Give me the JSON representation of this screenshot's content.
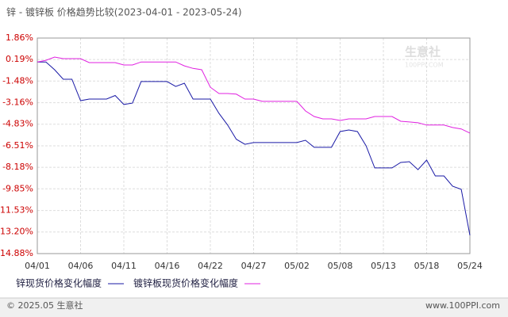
{
  "chart_data": {
    "type": "line",
    "title": "锌 - 镀锌板 价格趋势比较(2023-04-01 - 2023-05-24)",
    "categories": [
      "04/01",
      null,
      null,
      null,
      null,
      "04/06",
      null,
      null,
      null,
      null,
      "04/11",
      null,
      null,
      null,
      null,
      "04/16",
      null,
      null,
      null,
      null,
      "04/22",
      null,
      null,
      null,
      null,
      "04/27",
      null,
      null,
      null,
      null,
      "05/02",
      null,
      null,
      null,
      null,
      "05/08",
      null,
      null,
      null,
      null,
      "05/13",
      null,
      null,
      null,
      null,
      "05/18",
      null,
      null,
      null,
      null,
      "05/24"
    ],
    "series": [
      {
        "name": "锌现货价格变化幅度",
        "color": "#1a1aa6",
        "values": [
          0,
          0,
          -0.6,
          -1.34,
          -1.34,
          -3.0,
          -2.88,
          -2.88,
          -2.88,
          -2.6,
          -3.3,
          -3.19,
          -1.52,
          -1.52,
          -1.52,
          -1.52,
          -1.9,
          -1.65,
          -2.88,
          -2.88,
          -2.88,
          -3.99,
          -4.9,
          -6.0,
          -6.39,
          -6.26,
          -6.26,
          -6.26,
          -6.26,
          -6.26,
          -6.26,
          -6.08,
          -6.63,
          -6.63,
          -6.63,
          -5.4,
          -5.28,
          -5.4,
          -6.51,
          -8.23,
          -8.23,
          -8.23,
          -7.8,
          -7.74,
          -8.36,
          -7.62,
          -8.85,
          -8.85,
          -9.65,
          -9.89,
          -13.46
        ]
      },
      {
        "name": "镀锌板现货价格变化幅度",
        "color": "#e020e0",
        "values": [
          0,
          0.13,
          0.38,
          0.26,
          0.26,
          0.26,
          -0.05,
          -0.05,
          -0.05,
          -0.05,
          -0.23,
          -0.23,
          0,
          0,
          0,
          0,
          0,
          -0.3,
          -0.5,
          -0.6,
          -1.96,
          -2.45,
          -2.45,
          -2.5,
          -2.88,
          -2.88,
          -3.06,
          -3.06,
          -3.06,
          -3.06,
          -3.06,
          -3.8,
          -4.23,
          -4.42,
          -4.42,
          -4.54,
          -4.42,
          -4.42,
          -4.42,
          -4.23,
          -4.23,
          -4.23,
          -4.6,
          -4.66,
          -4.72,
          -4.9,
          -4.9,
          -4.9,
          -5.09,
          -5.2,
          -5.52
        ]
      }
    ],
    "ylim": [
      -14.88,
      1.86
    ],
    "yticks": [
      {
        "value": 1.86,
        "label": "1.86%"
      },
      {
        "value": 0.19,
        "label": "0.19%"
      },
      {
        "value": -1.48,
        "label": "-1.48%"
      },
      {
        "value": -3.16,
        "label": "-3.16%"
      },
      {
        "value": -4.83,
        "label": "-4.83%"
      },
      {
        "value": -6.51,
        "label": "-6.51%"
      },
      {
        "value": -8.18,
        "label": "-8.18%"
      },
      {
        "value": -9.85,
        "label": "-9.85%"
      },
      {
        "value": -11.53,
        "label": "-11.53%"
      },
      {
        "value": -13.2,
        "label": "-13.20%"
      },
      {
        "value": -14.88,
        "label": "-14.88%"
      }
    ],
    "grid": true,
    "watermark": "生意社",
    "watermark_sub": "100PPI.COM",
    "footer_left": "© 2025.05 生意社",
    "footer_right": "www.100PPI.com"
  }
}
